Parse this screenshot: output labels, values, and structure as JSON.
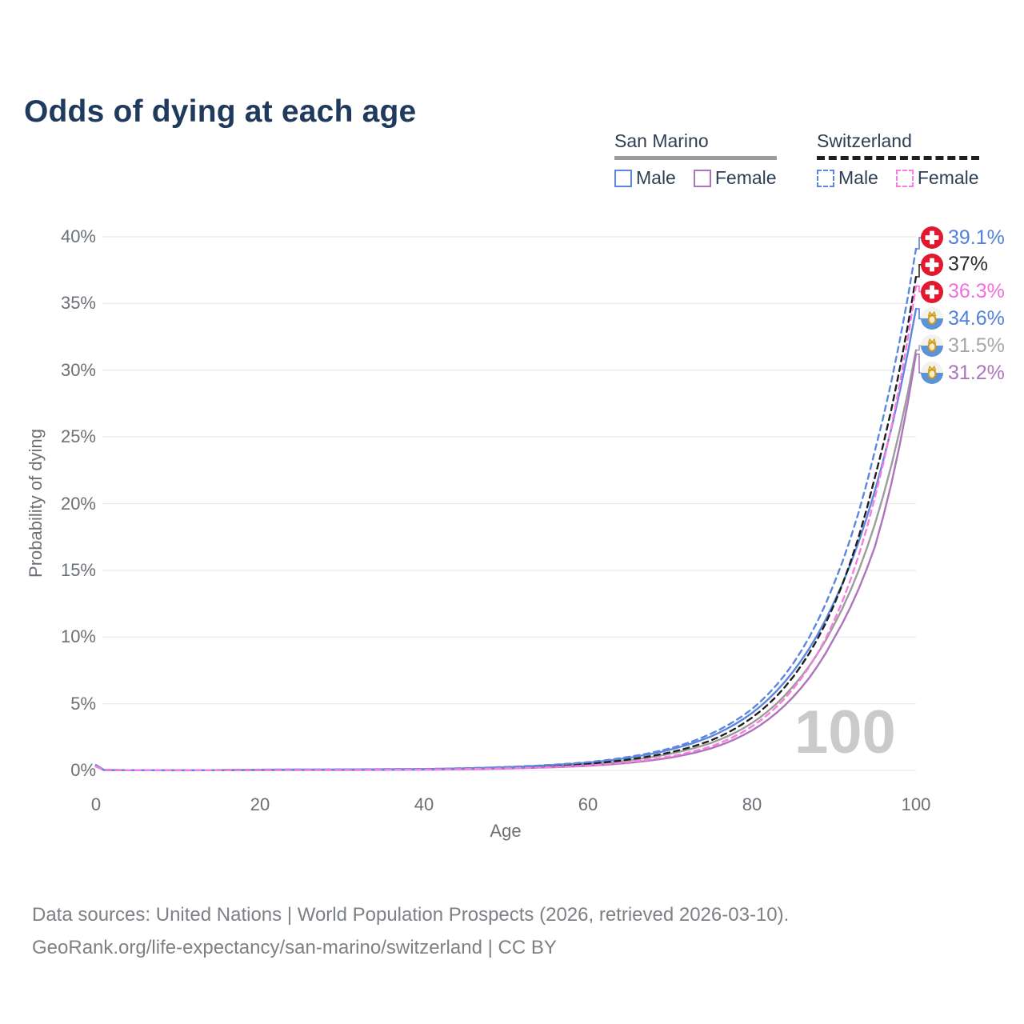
{
  "watermark": "100",
  "legend": {
    "groups": [
      {
        "name": "San Marino",
        "style": "solid",
        "underline_color": "#9b9b9b",
        "items": [
          {
            "label": "Male",
            "color": "#5b87e0"
          },
          {
            "label": "Female",
            "color": "#ad74bd"
          }
        ]
      },
      {
        "name": "Switzerland",
        "style": "dashed",
        "underline_color": "#1f1f1f",
        "items": [
          {
            "label": "Male",
            "color": "#5b87e0"
          },
          {
            "label": "Female",
            "color": "#f97ce0"
          }
        ]
      }
    ]
  },
  "footer": {
    "line1": "Data sources: United Nations | World Population Prospects (2026, retrieved 2026-03-10).",
    "line2": "GeoRank.org/life-expectancy/san-marino/switzerland | CC BY"
  },
  "chart_data": {
    "type": "line",
    "title": "Odds of dying at each age",
    "xlabel": "Age",
    "ylabel": "Probability of dying",
    "xlim": [
      0,
      100
    ],
    "ylim": [
      0,
      40
    ],
    "grid": "horizontal",
    "legend_position": "top-right",
    "xticks": [
      0,
      20,
      40,
      60,
      80,
      100
    ],
    "yticks": [
      0,
      5,
      10,
      15,
      20,
      25,
      30,
      35,
      40
    ],
    "ytick_labels": [
      "0%",
      "5%",
      "10%",
      "15%",
      "20%",
      "25%",
      "30%",
      "35%",
      "40%"
    ],
    "sample_ages": [
      0,
      1,
      10,
      20,
      30,
      40,
      50,
      55,
      60,
      65,
      70,
      75,
      80,
      85,
      90,
      95,
      100
    ],
    "series": [
      {
        "id": "sm-total",
        "name": "San Marino Total",
        "country": "San Marino",
        "color": "#9c9c9c",
        "dash": false,
        "values": [
          0.33,
          0.024,
          0.009,
          0.034,
          0.048,
          0.076,
          0.19,
          0.3,
          0.45,
          0.75,
          1.25,
          2.05,
          3.55,
          6.3,
          10.9,
          18.5,
          31.5
        ]
      },
      {
        "id": "sm-female",
        "name": "San Marino Female",
        "country": "San Marino",
        "color": "#ad74bd",
        "dash": false,
        "values": [
          0.28,
          0.02,
          0.007,
          0.02,
          0.029,
          0.052,
          0.14,
          0.22,
          0.34,
          0.57,
          0.95,
          1.65,
          3.0,
          5.5,
          9.9,
          16.8,
          31.2
        ]
      },
      {
        "id": "sm-male",
        "name": "San Marino Male",
        "country": "San Marino",
        "color": "#5b87e0",
        "dash": false,
        "values": [
          0.38,
          0.028,
          0.01,
          0.05,
          0.07,
          0.1,
          0.24,
          0.38,
          0.58,
          0.95,
          1.55,
          2.55,
          4.3,
          7.4,
          12.6,
          21.0,
          34.6
        ]
      },
      {
        "id": "ch-total",
        "name": "Switzerland Total",
        "country": "Switzerland",
        "color": "#1f1f1f",
        "dash": true,
        "values": [
          0.35,
          0.026,
          0.009,
          0.038,
          0.052,
          0.082,
          0.2,
          0.32,
          0.49,
          0.82,
          1.35,
          2.25,
          3.95,
          7.0,
          12.4,
          22.0,
          37.0
        ]
      },
      {
        "id": "ch-male",
        "name": "Switzerland Male",
        "country": "Switzerland",
        "color": "#5b87e0",
        "dash": true,
        "values": [
          0.4,
          0.03,
          0.01,
          0.055,
          0.075,
          0.105,
          0.26,
          0.4,
          0.62,
          1.02,
          1.65,
          2.75,
          4.6,
          8.0,
          14.0,
          24.0,
          39.1
        ]
      },
      {
        "id": "ch-female",
        "name": "Switzerland Female",
        "country": "Switzerland",
        "color": "#f97ce0",
        "dash": true,
        "values": [
          0.3,
          0.022,
          0.008,
          0.022,
          0.032,
          0.058,
          0.15,
          0.24,
          0.37,
          0.62,
          1.05,
          1.8,
          3.3,
          6.1,
          11.2,
          20.5,
          36.3
        ]
      }
    ],
    "end_labels": [
      {
        "text": "39.1%",
        "flag": "switzerland",
        "color": "#4f81dd",
        "value": 39.1
      },
      {
        "text": "37%",
        "flag": "switzerland",
        "color": "#2b2b2b",
        "value": 37
      },
      {
        "text": "36.3%",
        "flag": "switzerland",
        "color": "#f46ede",
        "value": 36.3
      },
      {
        "text": "34.6%",
        "flag": "san-marino",
        "color": "#4f81dd",
        "value": 34.6
      },
      {
        "text": "31.5%",
        "flag": "san-marino",
        "color": "#a6a6a6",
        "value": 31.5
      },
      {
        "text": "31.2%",
        "flag": "san-marino",
        "color": "#ab76bd",
        "value": 31.2
      }
    ]
  }
}
